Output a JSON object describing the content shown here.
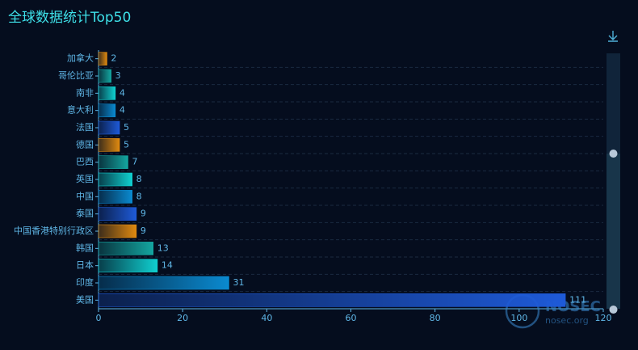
{
  "chart_data": {
    "type": "bar",
    "orientation": "horizontal",
    "title": "全球数据统计Top50",
    "categories": [
      "加拿大",
      "哥伦比亚",
      "南非",
      "意大利",
      "法国",
      "德国",
      "巴西",
      "英国",
      "中国",
      "泰国",
      "中国香港特别行政区",
      "韩国",
      "日本",
      "印度",
      "美国"
    ],
    "values": [
      2,
      3,
      4,
      4,
      5,
      5,
      7,
      8,
      8,
      9,
      9,
      13,
      14,
      31,
      111
    ],
    "colors": [
      "#e08a10",
      "#14a6a0",
      "#10d0d0",
      "#0a8ad0",
      "#1e5ad8"
    ],
    "xlim": [
      0,
      120
    ],
    "xticks": [
      0,
      20,
      40,
      60,
      80,
      100,
      120
    ],
    "watermark": {
      "brand": "NOSEC",
      "site": "nosec.org"
    }
  }
}
